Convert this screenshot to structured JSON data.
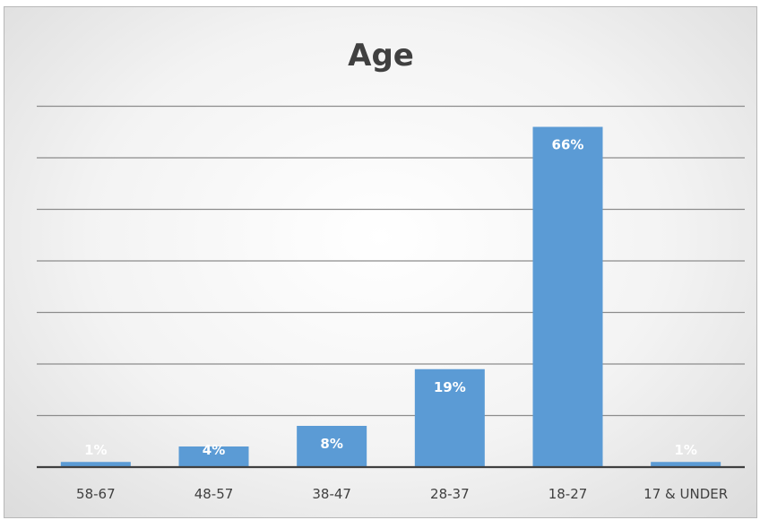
{
  "chart_data": {
    "type": "bar",
    "title": "Age",
    "categories": [
      "58-67",
      "48-57",
      "38-47",
      "28-37",
      "18-27",
      "17 & UNDER"
    ],
    "values": [
      1,
      4,
      8,
      19,
      66,
      1
    ],
    "value_labels": [
      "1%",
      "4%",
      "8%",
      "19%",
      "66%",
      "1%"
    ],
    "unit": "%",
    "ylim": [
      0,
      70
    ],
    "gridlines": true,
    "legend": "none",
    "bar_color": "#5b9bd5",
    "grid_color": "#8c8c8c",
    "axis_color": "#404040"
  }
}
